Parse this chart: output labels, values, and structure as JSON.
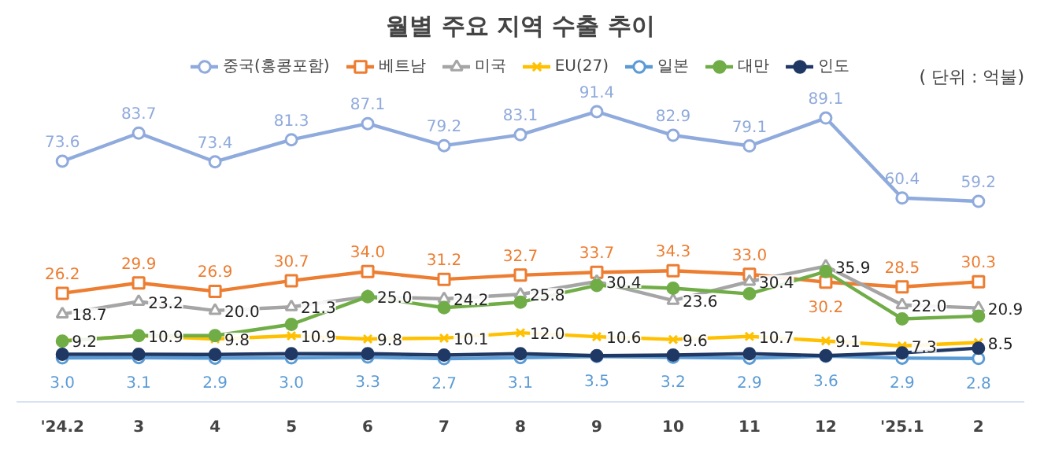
{
  "chart_data": {
    "type": "line",
    "title": "월별 주요 지역 수출 추이",
    "annotations": [
      "( 단위 : 억불)"
    ],
    "categories": [
      "'24.2",
      "3",
      "4",
      "5",
      "6",
      "7",
      "8",
      "9",
      "10",
      "11",
      "12",
      "'25.1",
      "2"
    ],
    "legend": "top",
    "series": [
      {
        "name": "중국(홍콩포함)",
        "color": "#8faadc",
        "marker": "circle",
        "values": [
          73.6,
          83.7,
          73.4,
          81.3,
          87.1,
          79.2,
          83.1,
          91.4,
          82.9,
          79.1,
          89.1,
          60.4,
          59.2
        ],
        "value_labels": [
          "73.6",
          "83.7",
          "73.4",
          "81.3",
          "87.1",
          "79.2",
          "83.1",
          "91.4",
          "82.9",
          "79.1",
          "89.1",
          "60.4",
          "59.2"
        ]
      },
      {
        "name": "베트남",
        "color": "#ed7d31",
        "marker": "square",
        "values": [
          26.2,
          29.9,
          26.9,
          30.7,
          34.0,
          31.2,
          32.7,
          33.7,
          34.3,
          33.0,
          30.2,
          28.5,
          30.3
        ],
        "value_labels": [
          "26.2",
          "29.9",
          "26.9",
          "30.7",
          "34.0",
          "31.2",
          "32.7",
          "33.7",
          "34.3",
          "33.0",
          "30.2",
          "28.5",
          "30.3"
        ]
      },
      {
        "name": "미국",
        "color": "#a5a5a5",
        "marker": "triangle",
        "values": [
          18.7,
          23.2,
          20.0,
          21.3,
          25.0,
          24.2,
          25.8,
          30.4,
          23.6,
          30.4,
          35.9,
          22.0,
          20.9
        ],
        "value_labels": [
          "18.7",
          "23.2",
          "20.0",
          "21.3",
          "25.0",
          "24.2",
          "25.8",
          "30.4",
          "23.6",
          "30.4",
          "35.9",
          "22.0",
          "20.9"
        ]
      },
      {
        "name": "EU(27)",
        "color": "#ffc000",
        "marker": "cross",
        "values": [
          9.2,
          10.9,
          9.8,
          10.9,
          9.8,
          10.1,
          12.0,
          10.6,
          9.6,
          10.7,
          9.1,
          7.3,
          8.5
        ],
        "value_labels": [
          "9.2",
          "10.9",
          "9.8",
          "10.9",
          "9.8",
          "10.1",
          "12.0",
          "10.6",
          "9.6",
          "10.7",
          "9.1",
          "7.3",
          "8.5"
        ]
      },
      {
        "name": "일본",
        "color": "#5b9bd5",
        "marker": "circle",
        "values": [
          3.0,
          3.1,
          2.9,
          3.0,
          3.3,
          2.7,
          3.1,
          3.5,
          3.2,
          2.9,
          3.6,
          2.9,
          2.8
        ],
        "value_labels": [
          "3.0",
          "3.1",
          "2.9",
          "3.0",
          "3.3",
          "2.7",
          "3.1",
          "3.5",
          "3.2",
          "2.9",
          "3.6",
          "2.9",
          "2.8"
        ]
      },
      {
        "name": "대만",
        "color": "#70ad47",
        "marker": "circle",
        "values": [
          9,
          11,
          11,
          15,
          25,
          21,
          23,
          29,
          28,
          26,
          34,
          17,
          18
        ]
      },
      {
        "name": "인도",
        "color": "#203864",
        "marker": "circle",
        "values": [
          4.3,
          4.3,
          4.2,
          4.5,
          4.5,
          4.0,
          4.5,
          3.8,
          4.0,
          4.5,
          3.8,
          4.8,
          6.5
        ]
      }
    ]
  }
}
